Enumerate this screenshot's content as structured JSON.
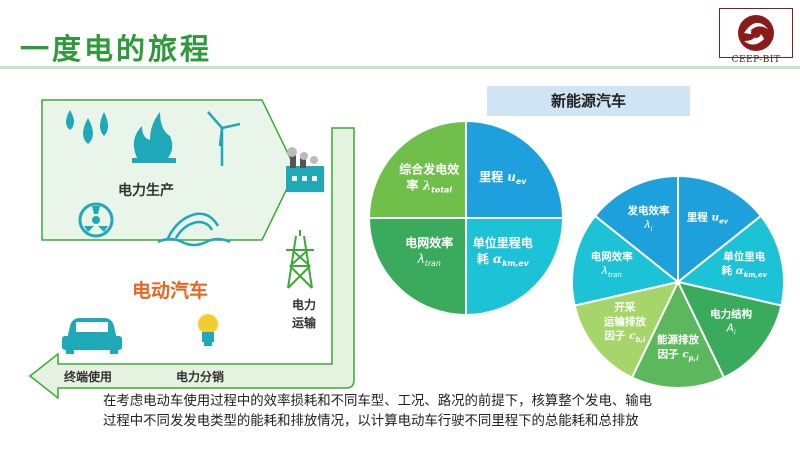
{
  "page": {
    "title": "一度电的旅程",
    "logo_text": "CEEP-BIT",
    "section_title": "新能源汽车",
    "description_line1": "在考虑电动车使用过程中的效率损耗和不同车型、工况、路况的前提下，核算整个发电、输电",
    "description_line2": "过程中不同发发电类型的能耗和排放情况，以计算电动车行驶不同里程下的总能耗和总排放"
  },
  "flow": {
    "power_generation": "电力生产",
    "electric_vehicle": "电动汽车",
    "transmission": "电力\n运输",
    "distribution": "电力分销",
    "end_use": "终端使用"
  },
  "pie_small": [
    {
      "id": "s1",
      "line1": "综合发电效",
      "line2": "率 ",
      "sym": "λ",
      "sub": "total",
      "color": "#6fbf4a"
    },
    {
      "id": "s2",
      "line1": "里程 ",
      "line2": "",
      "sym": "u",
      "sub": "ev",
      "color": "#1ea0dc"
    },
    {
      "id": "s3",
      "line1": "电网效率",
      "line2": "",
      "sym": "λ",
      "sub": "tran",
      "color": "#3aaa5c"
    },
    {
      "id": "s4",
      "line1": "单位里程电",
      "line2": "耗 ",
      "sym": "α",
      "sub": "km,ev",
      "color": "#1cc2d6"
    }
  ],
  "pie_large": [
    {
      "id": "l1",
      "line1": "里程 ",
      "sym": "u",
      "sub": "ev",
      "color": "#1ea0dc"
    },
    {
      "id": "l2",
      "line1": "单位里电",
      "line2": "耗 ",
      "sym": "α",
      "sub": "km,ev",
      "color": "#1cc2d6"
    },
    {
      "id": "l3",
      "line1": "电力结构",
      "sym": "A",
      "sub": "i",
      "color": "#3aaa5c"
    },
    {
      "id": "l4",
      "line1": "能源排放",
      "line2": "因子 ",
      "sym": "c",
      "sub": "p,i",
      "color": "#5cb85c"
    },
    {
      "id": "l5",
      "line1": "开采",
      "line2": "运输排放",
      "line3": "因子 ",
      "sym": "c",
      "sub": "b,i",
      "color": "#a6d66a"
    },
    {
      "id": "l6",
      "line1": "电网效率",
      "sym": "λ",
      "sub": "tran",
      "color": "#1cc2d6"
    },
    {
      "id": "l7",
      "line1": "发电效率",
      "sym": "λ",
      "sub": "i",
      "color": "#1ea0dc"
    }
  ],
  "colors": {
    "title_green": "#2e9a3a",
    "ev_orange": "#e8661e",
    "diagram_green": "#3aaa35",
    "arrow_fill": "#e6f2e0",
    "panel_fill": "#e9f5e9"
  }
}
